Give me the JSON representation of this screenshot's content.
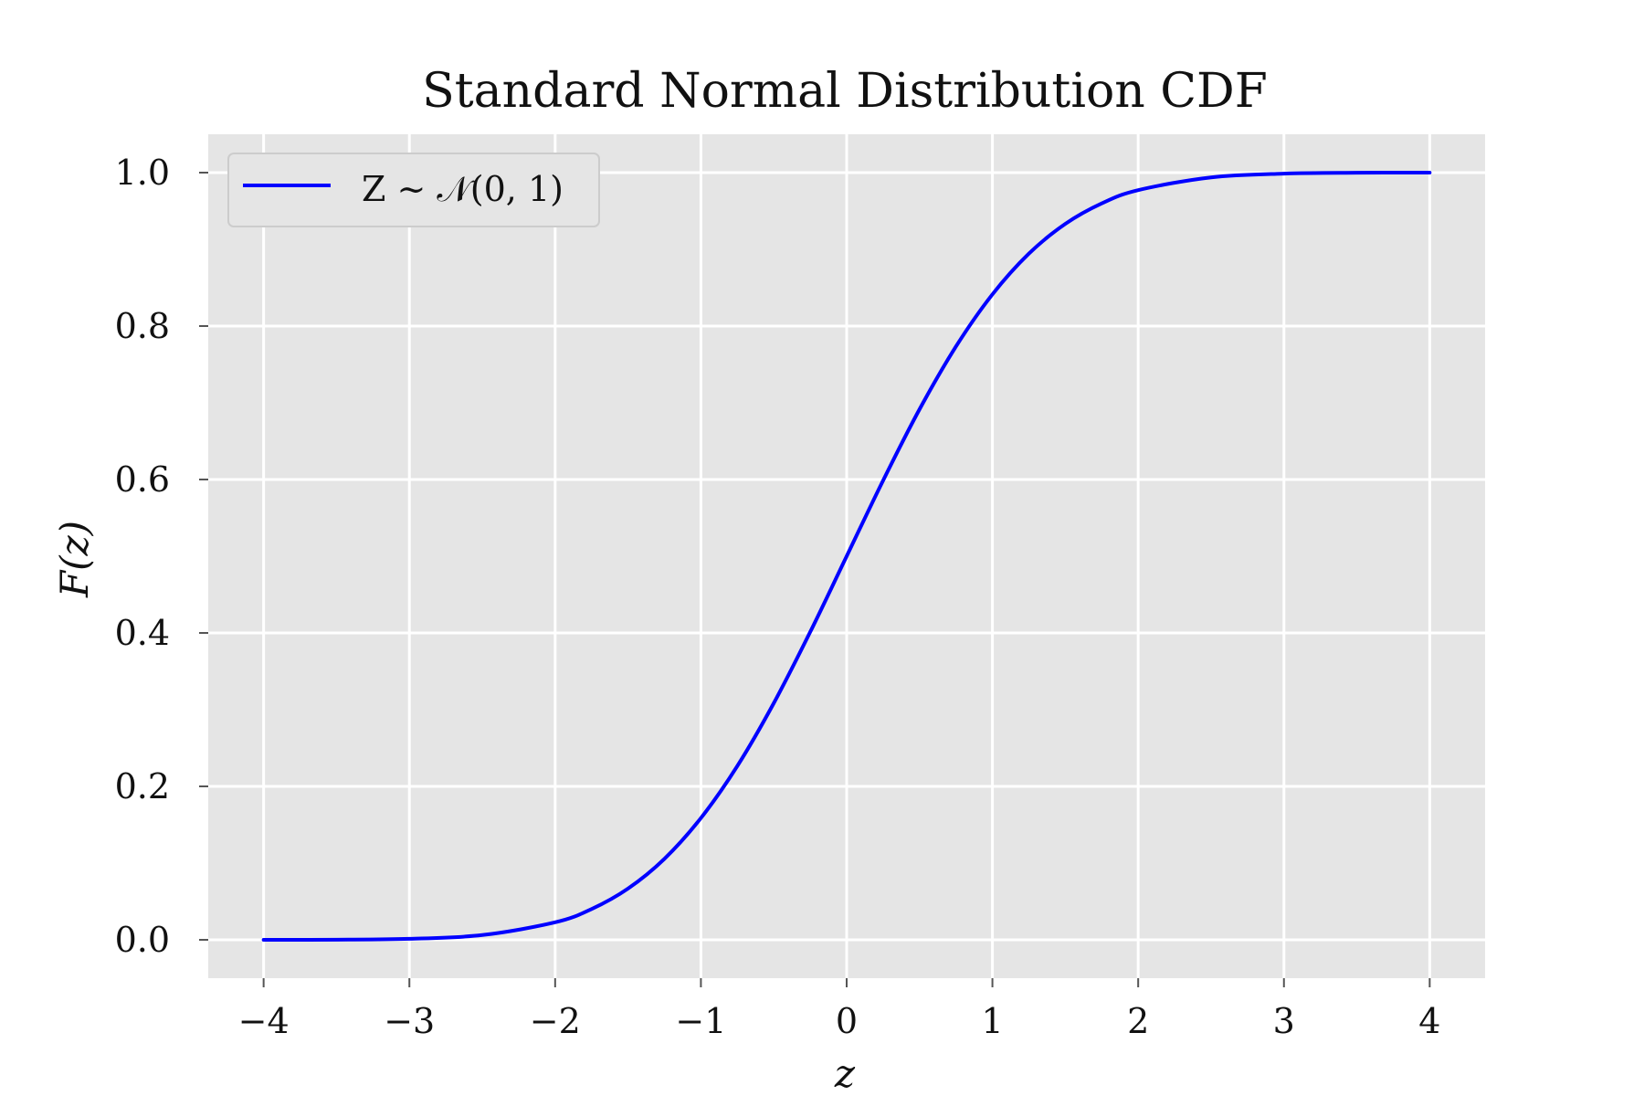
{
  "chart_data": {
    "type": "line",
    "title": "Standard Normal Distribution CDF",
    "xlabel": "z",
    "ylabel": "F(z)",
    "xlim": [
      -4.38,
      4.38
    ],
    "ylim": [
      -0.05,
      1.05
    ],
    "xticks": [
      -4,
      -3,
      -2,
      -1,
      0,
      1,
      2,
      3,
      4
    ],
    "xtick_labels": [
      "−4",
      "−3",
      "−2",
      "−1",
      "0",
      "1",
      "2",
      "3",
      "4"
    ],
    "yticks": [
      0.0,
      0.2,
      0.4,
      0.6,
      0.8,
      1.0
    ],
    "ytick_labels": [
      "0.0",
      "0.2",
      "0.4",
      "0.6",
      "0.8",
      "1.0"
    ],
    "grid": true,
    "legend_position": "top-left",
    "colors": {
      "background": "#e5e5e5",
      "grid": "#ffffff",
      "line": "#0000ff"
    },
    "series": [
      {
        "name": "Z ∼ 𝒩(0, 1)",
        "x": [
          -4.0,
          -3.5,
          -3.0,
          -2.5,
          -2.0,
          -1.75,
          -1.5,
          -1.25,
          -1.0,
          -0.75,
          -0.5,
          -0.25,
          0.0,
          0.25,
          0.5,
          0.75,
          1.0,
          1.25,
          1.5,
          1.75,
          2.0,
          2.5,
          3.0,
          3.5,
          4.0
        ],
        "y": [
          3e-05,
          0.0002,
          0.0013,
          0.0062,
          0.0228,
          0.0401,
          0.0668,
          0.1056,
          0.1587,
          0.2266,
          0.3085,
          0.4013,
          0.5,
          0.5987,
          0.6915,
          0.7734,
          0.8413,
          0.8944,
          0.9332,
          0.9599,
          0.9772,
          0.9938,
          0.9987,
          0.9998,
          0.99997
        ]
      }
    ]
  }
}
